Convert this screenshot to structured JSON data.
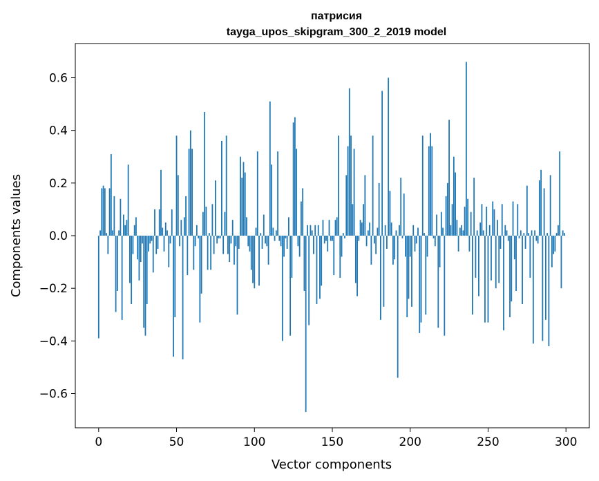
{
  "chart_data": {
    "type": "bar",
    "title": "патрисия",
    "subtitle": "tayga_upos_skipgram_300_2_2019 model",
    "xlabel": "Vector components",
    "ylabel": "Components values",
    "xlim": [
      -15,
      315
    ],
    "ylim": [
      -0.73,
      0.73
    ],
    "xticks": [
      0,
      50,
      100,
      150,
      200,
      250,
      300
    ],
    "yticks": [
      -0.6,
      -0.4,
      -0.2,
      0.0,
      0.2,
      0.4,
      0.6
    ],
    "ytick_labels": [
      "−0.6",
      "−0.4",
      "−0.2",
      "0.0",
      "0.2",
      "0.4",
      "0.6"
    ],
    "bar_color": "#1f77b4",
    "x_start": 0,
    "values": [
      -0.39,
      0.02,
      0.18,
      0.19,
      0.18,
      0.01,
      -0.07,
      0.18,
      0.31,
      0.02,
      0.15,
      -0.29,
      -0.21,
      0.02,
      0.14,
      -0.32,
      0.08,
      0.04,
      0.06,
      0.27,
      -0.18,
      -0.26,
      -0.07,
      0.04,
      0.07,
      -0.09,
      -0.17,
      -0.1,
      -0.03,
      -0.35,
      -0.38,
      -0.26,
      -0.06,
      -0.03,
      -0.02,
      -0.14,
      0.1,
      -0.07,
      -0.05,
      0.1,
      0.25,
      0.03,
      -0.06,
      0.05,
      0.02,
      -0.12,
      -0.03,
      0.1,
      -0.46,
      -0.31,
      0.38,
      0.23,
      -0.04,
      0.06,
      -0.47,
      0.07,
      0.15,
      -0.15,
      0.33,
      0.4,
      0.33,
      -0.13,
      -0.04,
      0.04,
      -0.01,
      -0.33,
      -0.22,
      0.09,
      0.47,
      0.11,
      -0.13,
      0.01,
      -0.13,
      0.12,
      -0.07,
      0.21,
      -0.03,
      -0.01,
      -0.01,
      0.36,
      -0.07,
      0.09,
      0.38,
      -0.07,
      -0.1,
      -0.03,
      0.06,
      -0.11,
      -0.04,
      -0.3,
      -0.05,
      0.3,
      0.22,
      0.28,
      0.24,
      0.07,
      -0.04,
      -0.06,
      -0.13,
      -0.18,
      -0.2,
      0.03,
      0.32,
      -0.19,
      0.01,
      -0.05,
      0.08,
      -0.03,
      -0.04,
      -0.11,
      0.51,
      0.27,
      0.03,
      -0.02,
      0.02,
      0.32,
      -0.02,
      -0.04,
      -0.4,
      -0.08,
      -0.01,
      -0.05,
      0.07,
      -0.38,
      -0.16,
      0.43,
      0.45,
      0.33,
      -0.04,
      -0.08,
      0.13,
      0.18,
      -0.21,
      -0.67,
      0.04,
      -0.34,
      0.04,
      0.02,
      -0.07,
      0.04,
      -0.26,
      0.04,
      -0.24,
      -0.19,
      0.06,
      -0.03,
      -0.02,
      -0.06,
      0.06,
      -0.02,
      -0.02,
      -0.15,
      0.06,
      0.07,
      0.38,
      -0.16,
      -0.08,
      0.01,
      -0.01,
      0.23,
      0.34,
      0.56,
      0.38,
      0.12,
      0.33,
      -0.18,
      -0.23,
      -0.02,
      0.06,
      0.05,
      0.12,
      0.23,
      -0.04,
      0.02,
      0.05,
      -0.11,
      0.38,
      -0.03,
      -0.07,
      0.03,
      0.2,
      -0.32,
      0.55,
      -0.27,
      0.04,
      -0.05,
      0.6,
      0.17,
      0.05,
      -0.11,
      -0.09,
      0.02,
      -0.54,
      0.04,
      0.22,
      -0.01,
      0.16,
      -0.08,
      -0.31,
      -0.24,
      -0.08,
      -0.27,
      0.04,
      -0.06,
      -0.03,
      0.03,
      -0.37,
      -0.33,
      0.38,
      0.01,
      -0.3,
      -0.08,
      0.34,
      0.39,
      0.34,
      -0.01,
      -0.04,
      0.08,
      -0.35,
      -0.12,
      0.09,
      0.03,
      -0.38,
      0.15,
      0.2,
      0.44,
      0.04,
      0.12,
      0.3,
      0.24,
      0.06,
      -0.06,
      0.03,
      0.04,
      0.02,
      0.11,
      0.66,
      0.14,
      -0.06,
      0.09,
      -0.3,
      0.22,
      -0.16,
      0.02,
      -0.23,
      0.05,
      0.12,
      0.02,
      -0.33,
      0.11,
      -0.33,
      0.04,
      -0.17,
      0.13,
      0.1,
      -0.2,
      0.06,
      -0.18,
      -0.05,
      0.12,
      -0.36,
      0.04,
      0.02,
      -0.02,
      -0.31,
      -0.25,
      0.13,
      -0.09,
      -0.21,
      0.12,
      -0.01,
      0.02,
      -0.26,
      0.01,
      -0.05,
      0.19,
      0.01,
      -0.16,
      0.02,
      -0.41,
      0.02,
      -0.02,
      -0.03,
      0.21,
      0.25,
      -0.4,
      0.18,
      -0.32,
      0.01,
      -0.42,
      0.23,
      -0.12,
      -0.07,
      -0.06,
      0.01,
      0.04,
      0.32,
      -0.2,
      0.02,
      0.01
    ]
  }
}
